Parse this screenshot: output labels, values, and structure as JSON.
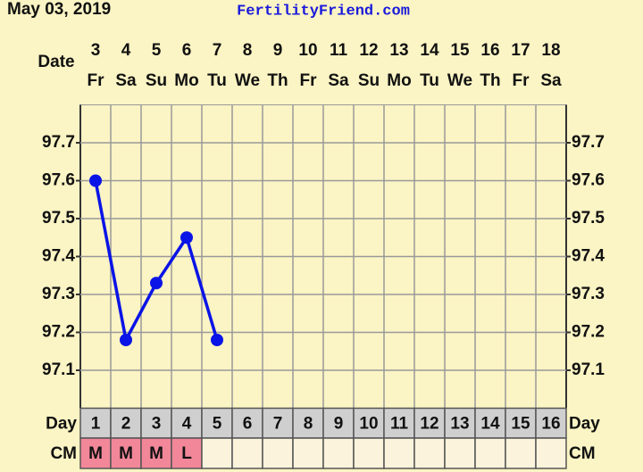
{
  "header": {
    "date": "May 03, 2019",
    "site": "FertilityFriend.com"
  },
  "chart_data": {
    "type": "line",
    "row_labels": {
      "date": "Date",
      "day": "Day",
      "cm": "CM"
    },
    "dates": [
      3,
      4,
      5,
      6,
      7,
      8,
      9,
      10,
      11,
      12,
      13,
      14,
      15,
      16,
      17,
      18
    ],
    "weekdays": [
      "Fr",
      "Sa",
      "Su",
      "Mo",
      "Tu",
      "We",
      "Th",
      "Fr",
      "Sa",
      "Su",
      "Mo",
      "Tu",
      "We",
      "Th",
      "Fr",
      "Sa"
    ],
    "x": [
      1,
      2,
      3,
      4,
      5,
      6,
      7,
      8,
      9,
      10,
      11,
      12,
      13,
      14,
      15,
      16
    ],
    "values": [
      97.6,
      97.18,
      97.33,
      97.45,
      97.18,
      null,
      null,
      null,
      null,
      null,
      null,
      null,
      null,
      null,
      null,
      null
    ],
    "cm": [
      "M",
      "M",
      "M",
      "L",
      null,
      null,
      null,
      null,
      null,
      null,
      null,
      null,
      null,
      null,
      null,
      null
    ],
    "color": "#0a14e6",
    "cm_color": "#f2879a",
    "ylim": [
      97.0,
      97.8
    ],
    "yticks": [
      97.1,
      97.2,
      97.3,
      97.4,
      97.5,
      97.6,
      97.7
    ],
    "grid": true
  }
}
